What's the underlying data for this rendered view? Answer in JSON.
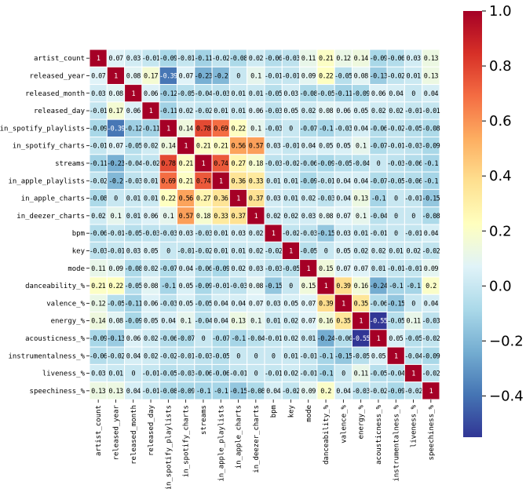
{
  "chart_data": {
    "type": "heatmap",
    "categories": [
      "artist_count",
      "released_year",
      "released_month",
      "released_day",
      "in_spotify_playlists",
      "in_spotify_charts",
      "streams",
      "in_apple_playlists",
      "in_apple_charts",
      "in_deezer_charts",
      "bpm",
      "key",
      "mode",
      "danceability_%",
      "valence_%",
      "energy_%",
      "acousticness_%",
      "instrumentalness_%",
      "liveness_%",
      "speechiness_%"
    ],
    "values": [
      [
        1,
        0.07,
        0.03,
        -0.01,
        -0.09,
        -0.01,
        -0.11,
        -0.02,
        -0.08,
        0.02,
        -0.06,
        -0.03,
        0.11,
        0.21,
        0.12,
        0.14,
        -0.09,
        -0.06,
        0.03,
        0.13
      ],
      [
        0.07,
        1,
        0.08,
        0.17,
        -0.39,
        0.07,
        -0.23,
        -0.2,
        0,
        0.1,
        -0.01,
        -0.01,
        0.09,
        0.22,
        -0.05,
        0.08,
        -0.13,
        -0.02,
        0.01,
        0.13
      ],
      [
        0.03,
        0.08,
        1,
        0.06,
        -0.12,
        -0.05,
        -0.04,
        -0.03,
        0.01,
        0.01,
        -0.05,
        0.03,
        -0.08,
        -0.05,
        -0.11,
        -0.09,
        0.06,
        0.04,
        0,
        0.04
      ],
      [
        -0.01,
        0.17,
        0.06,
        1,
        -0.11,
        0.02,
        -0.02,
        0.01,
        0.01,
        0.06,
        -0.03,
        0.05,
        0.02,
        0.08,
        0.06,
        0.05,
        0.02,
        0.02,
        -0.01,
        -0.01
      ],
      [
        -0.09,
        -0.39,
        -0.12,
        -0.11,
        1,
        0.14,
        0.78,
        0.69,
        0.22,
        0.1,
        -0.03,
        0,
        -0.07,
        -0.1,
        -0.03,
        0.04,
        -0.06,
        -0.02,
        -0.05,
        -0.08
      ],
      [
        -0.01,
        0.07,
        -0.05,
        0.02,
        0.14,
        1,
        0.21,
        0.21,
        0.56,
        0.57,
        0.03,
        -0.01,
        0.04,
        0.05,
        0.05,
        0.1,
        -0.07,
        -0.01,
        -0.03,
        -0.09
      ],
      [
        -0.11,
        -0.23,
        -0.04,
        -0.02,
        0.78,
        0.21,
        1,
        0.74,
        0.27,
        0.18,
        -0.03,
        -0.02,
        -0.06,
        -0.09,
        -0.05,
        -0.04,
        0,
        -0.03,
        -0.06,
        -0.1
      ],
      [
        -0.02,
        -0.2,
        -0.03,
        0.01,
        0.69,
        0.21,
        0.74,
        1,
        0.36,
        0.33,
        0.01,
        0.01,
        -0.09,
        -0.01,
        0.04,
        0.04,
        -0.07,
        -0.05,
        -0.06,
        -0.1
      ],
      [
        -0.08,
        0,
        0.01,
        0.01,
        0.22,
        0.56,
        0.27,
        0.36,
        1,
        0.37,
        0.03,
        0.01,
        0.02,
        -0.03,
        0.04,
        0.13,
        -0.1,
        0,
        -0.01,
        -0.15
      ],
      [
        0.02,
        0.1,
        0.01,
        0.06,
        0.1,
        0.57,
        0.18,
        0.33,
        0.37,
        1,
        0.02,
        0.02,
        0.03,
        0.08,
        0.07,
        0.1,
        -0.04,
        0,
        0,
        -0.08
      ],
      [
        -0.06,
        -0.01,
        -0.05,
        -0.03,
        -0.03,
        0.03,
        -0.03,
        0.01,
        0.03,
        0.02,
        1,
        -0.02,
        -0.03,
        -0.15,
        0.03,
        0.01,
        -0.01,
        0,
        -0.01,
        0.04
      ],
      [
        -0.03,
        -0.01,
        0.03,
        0.05,
        0,
        -0.01,
        -0.02,
        0.01,
        0.01,
        0.02,
        -0.02,
        1,
        -0.05,
        0,
        0.05,
        0.02,
        0.02,
        0.01,
        0.02,
        -0.02
      ],
      [
        0.11,
        0.09,
        -0.08,
        0.02,
        -0.07,
        0.04,
        -0.06,
        -0.09,
        0.02,
        0.03,
        -0.03,
        -0.05,
        1,
        0.15,
        0.07,
        0.07,
        0.01,
        -0.01,
        -0.01,
        0.09
      ],
      [
        0.21,
        0.22,
        -0.05,
        0.08,
        -0.1,
        0.05,
        -0.09,
        -0.01,
        -0.03,
        0.08,
        -0.15,
        0,
        0.15,
        1,
        0.39,
        0.16,
        -0.24,
        -0.1,
        -0.1,
        0.2
      ],
      [
        0.12,
        -0.05,
        -0.11,
        0.06,
        -0.03,
        0.05,
        -0.05,
        0.04,
        0.04,
        0.07,
        0.03,
        0.05,
        0.07,
        0.39,
        1,
        0.35,
        -0.06,
        -0.15,
        0,
        0.04
      ],
      [
        0.14,
        0.08,
        -0.09,
        0.05,
        0.04,
        0.1,
        -0.04,
        0.04,
        0.13,
        0.1,
        0.01,
        0.02,
        0.07,
        0.16,
        0.35,
        1,
        -0.55,
        -0.05,
        0.11,
        -0.03
      ],
      [
        -0.09,
        -0.13,
        0.06,
        0.02,
        -0.06,
        -0.07,
        0,
        -0.07,
        -0.1,
        -0.04,
        -0.01,
        0.02,
        0.01,
        -0.24,
        -0.06,
        -0.55,
        1,
        0.05,
        -0.05,
        -0.02
      ],
      [
        -0.06,
        -0.02,
        0.04,
        0.02,
        -0.02,
        -0.01,
        -0.03,
        -0.05,
        0,
        0,
        0,
        0.01,
        -0.01,
        -0.1,
        -0.15,
        -0.05,
        0.05,
        1,
        -0.04,
        -0.09
      ],
      [
        0.03,
        0.01,
        0,
        -0.01,
        -0.05,
        -0.03,
        -0.06,
        -0.06,
        -0.01,
        0,
        -0.01,
        0.02,
        -0.01,
        -0.1,
        0,
        0.11,
        -0.05,
        -0.04,
        1,
        -0.02
      ],
      [
        0.13,
        0.13,
        0.04,
        -0.01,
        -0.08,
        -0.09,
        -0.1,
        -0.1,
        -0.15,
        -0.08,
        0.04,
        -0.02,
        0.09,
        0.2,
        0.04,
        -0.03,
        -0.02,
        -0.09,
        -0.02,
        1
      ]
    ],
    "colors": [
      "#313695",
      "#4575b4",
      "#74add1",
      "#abd9e9",
      "#e0f3f8",
      "#ffffbf",
      "#fee090",
      "#fdae61",
      "#f46d43",
      "#d73027",
      "#a50026"
    ],
    "clim": [
      -0.55,
      1
    ],
    "cticks": [
      {
        "value": -0.4,
        "label": "−0.4"
      },
      {
        "value": -0.2,
        "label": "−0.2"
      },
      {
        "value": 0,
        "label": "0.0"
      },
      0.2,
      0.4,
      0.6,
      0.8,
      {
        "value": 1,
        "label": "1.0"
      }
    ]
  }
}
